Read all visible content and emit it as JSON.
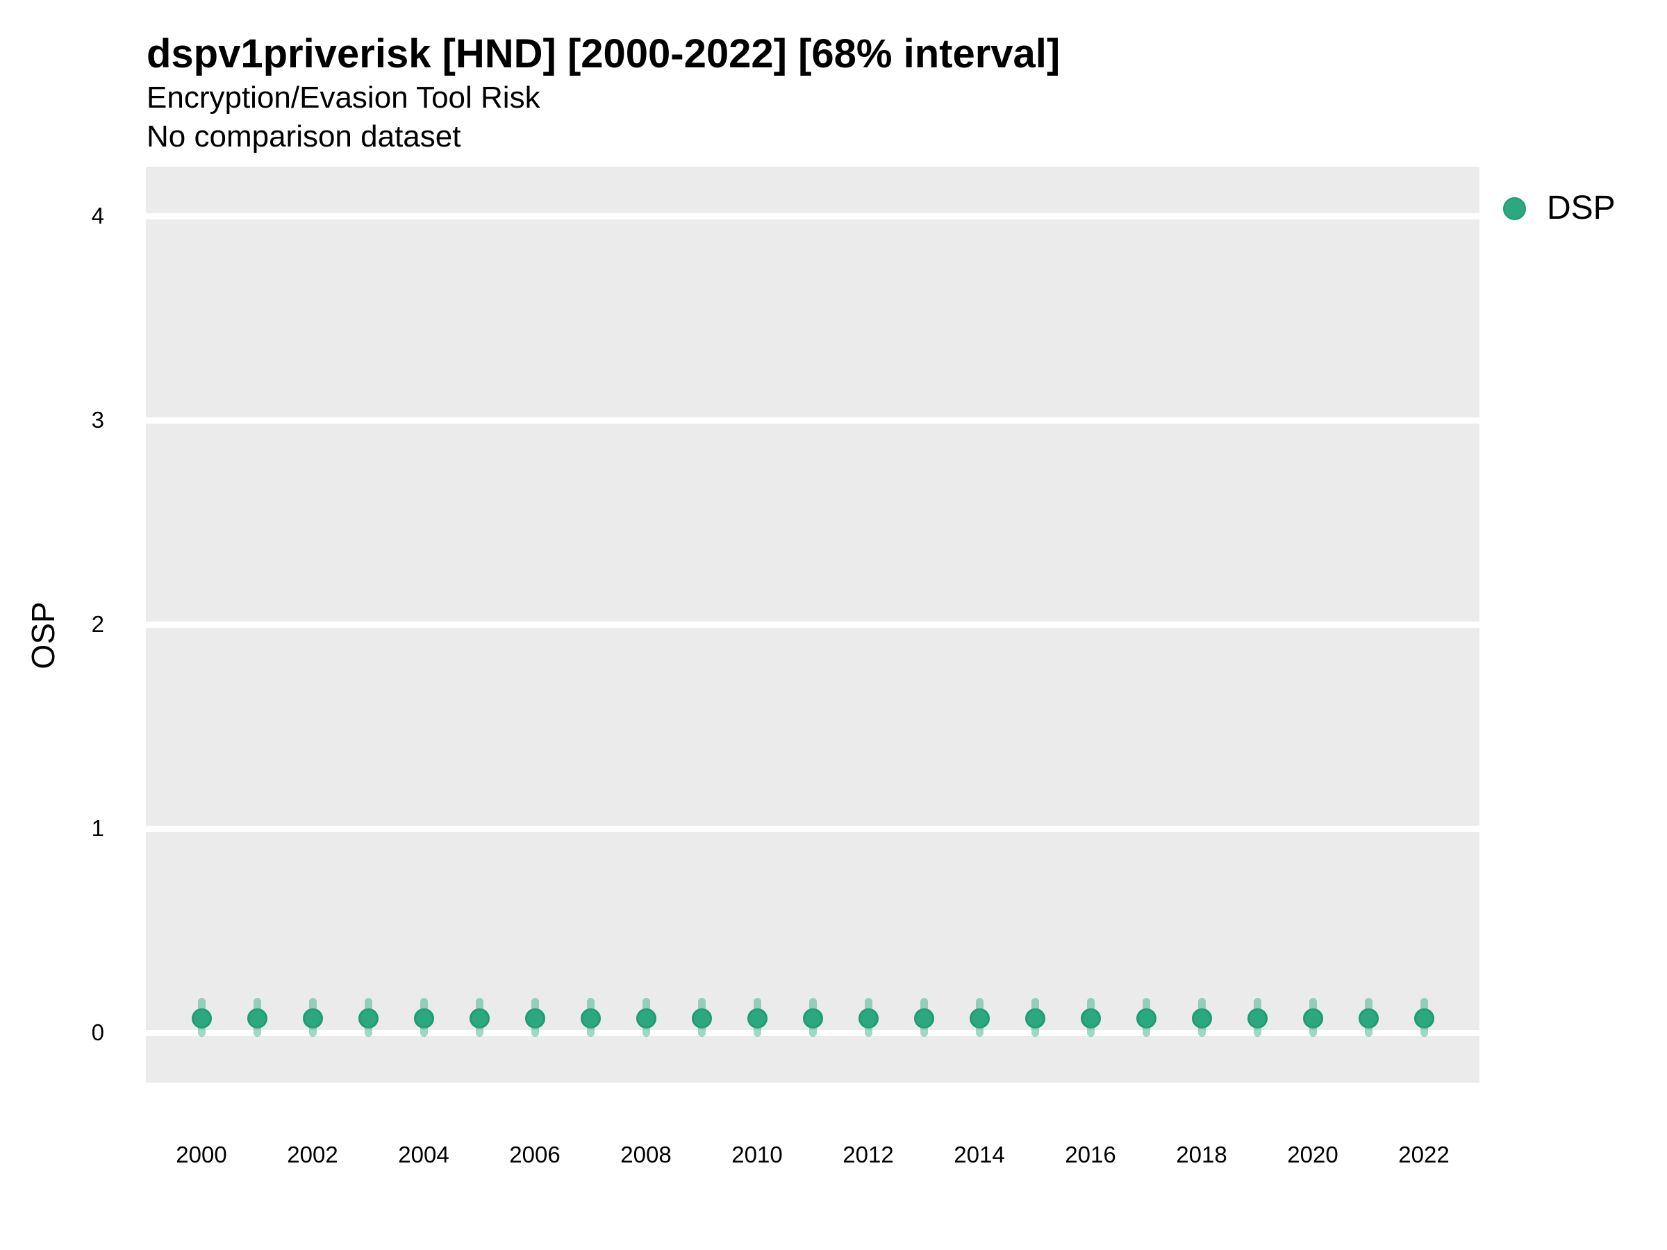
{
  "chart_data": {
    "type": "scatter",
    "title": "dspv1priverisk [HND] [2000-2022] [68% interval]",
    "subtitle": "Encryption/Evasion Tool Risk",
    "note": "No comparison dataset",
    "xlabel": "",
    "ylabel": "OSP",
    "x": [
      2000,
      2001,
      2002,
      2003,
      2004,
      2005,
      2006,
      2007,
      2008,
      2009,
      2010,
      2011,
      2012,
      2013,
      2014,
      2015,
      2016,
      2017,
      2018,
      2019,
      2020,
      2021,
      2022
    ],
    "series": [
      {
        "name": "DSP",
        "values": [
          0.07,
          0.07,
          0.07,
          0.07,
          0.07,
          0.07,
          0.07,
          0.07,
          0.07,
          0.07,
          0.07,
          0.07,
          0.07,
          0.07,
          0.07,
          0.07,
          0.07,
          0.07,
          0.07,
          0.07,
          0.07,
          0.07,
          0.07
        ],
        "lower_68": [
          -0.02,
          -0.02,
          -0.02,
          -0.02,
          -0.02,
          -0.02,
          -0.02,
          -0.02,
          -0.02,
          -0.02,
          -0.02,
          -0.02,
          -0.02,
          -0.02,
          -0.02,
          -0.02,
          -0.02,
          -0.02,
          -0.02,
          -0.02,
          -0.02,
          -0.02,
          -0.02
        ],
        "upper_68": [
          0.17,
          0.17,
          0.17,
          0.17,
          0.17,
          0.17,
          0.17,
          0.17,
          0.17,
          0.17,
          0.17,
          0.17,
          0.17,
          0.17,
          0.17,
          0.17,
          0.17,
          0.17,
          0.17,
          0.17,
          0.17,
          0.17,
          0.17
        ]
      }
    ],
    "xticks": [
      2000,
      2002,
      2004,
      2006,
      2008,
      2010,
      2012,
      2014,
      2016,
      2018,
      2020,
      2022
    ],
    "yticks": [
      0,
      1,
      2,
      3,
      4
    ],
    "ylim": [
      -0.25,
      4.25
    ],
    "xlim": [
      1999,
      2023
    ],
    "grid": "horizontal-major-only",
    "legend_position": "right",
    "colors": {
      "point": "#2ca881",
      "point_border": "#1f9c72",
      "interval": "rgba(44,168,129,0.45)",
      "panel_background": "#ebebeb",
      "gridline": "#ffffff",
      "text": "#000000"
    }
  }
}
